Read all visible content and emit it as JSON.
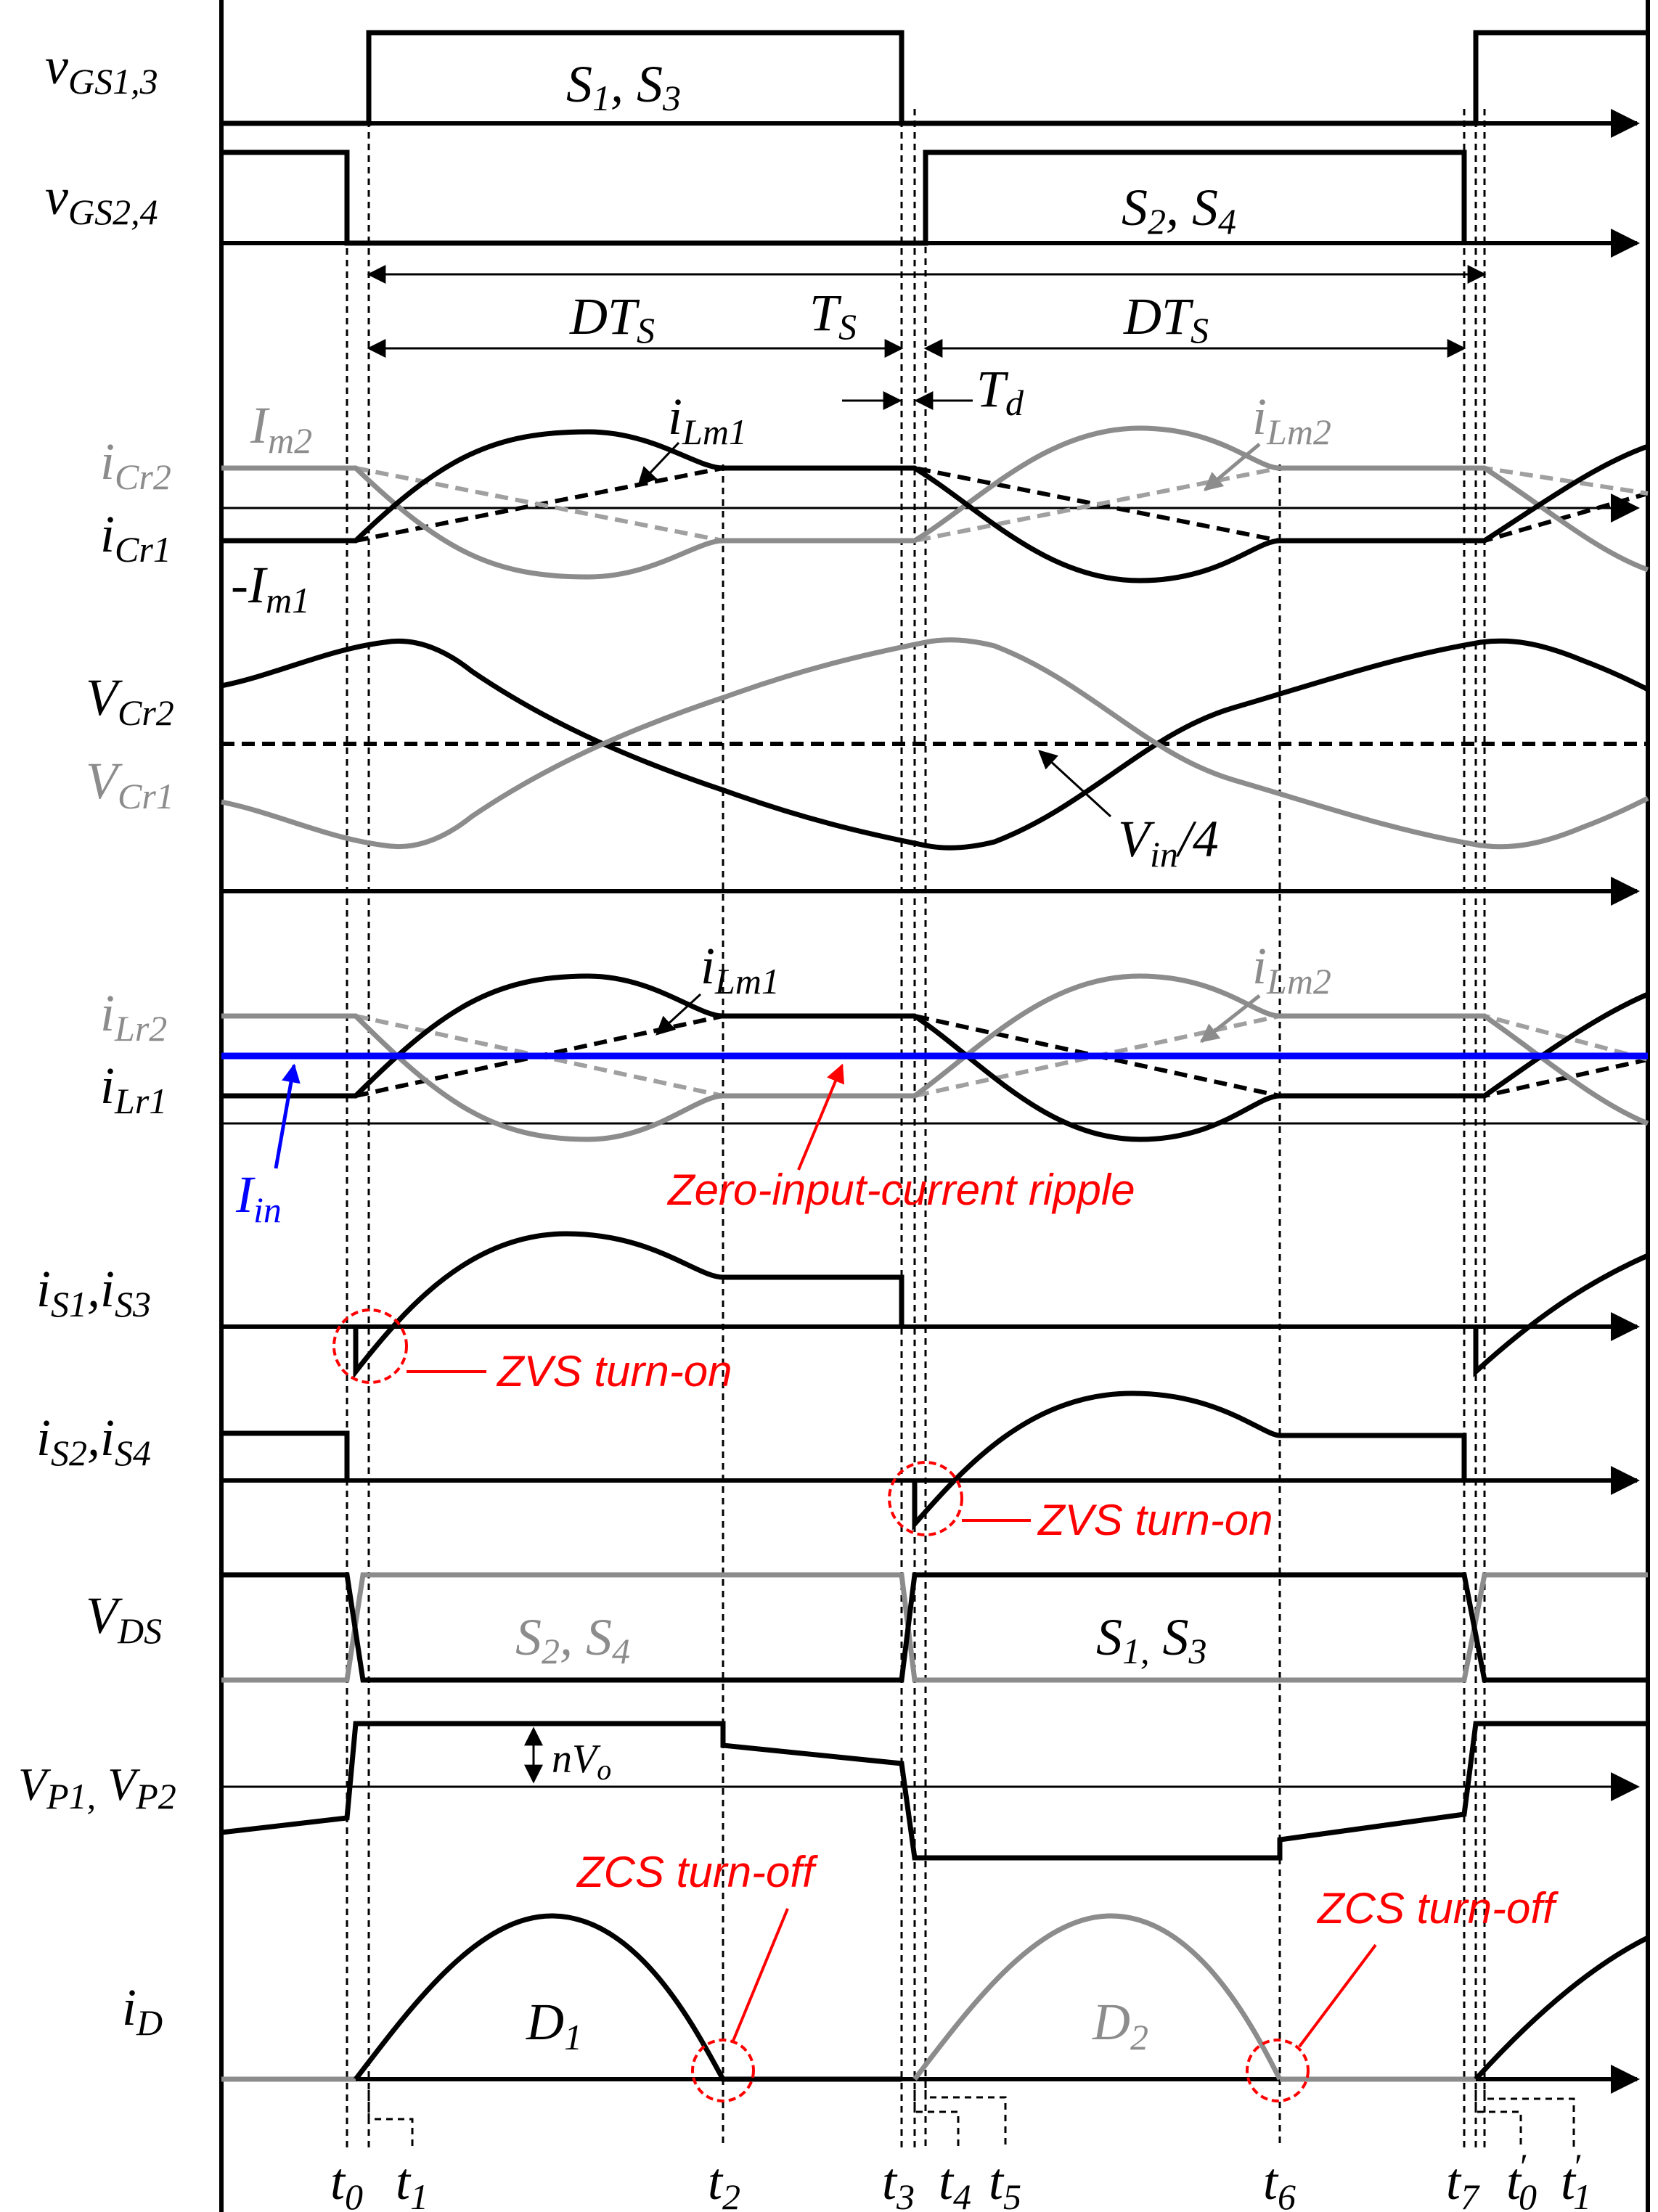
{
  "signals": {
    "vgs13": {
      "main": "v",
      "sub": "GS1,3"
    },
    "vgs24": {
      "main": "v",
      "sub": "GS2,4"
    },
    "icr2": {
      "main": "i",
      "sub": "Cr2"
    },
    "icr1": {
      "main": "i",
      "sub": "Cr1"
    },
    "vcr2": {
      "main": "V",
      "sub": "Cr2"
    },
    "vcr1": {
      "main": "V",
      "sub": "Cr1"
    },
    "ilr2": {
      "main": "i",
      "sub": "Lr2"
    },
    "ilr1": {
      "main": "i",
      "sub": "Lr1"
    },
    "is13": {
      "a": "i",
      "asub": "S1",
      "sep": ",",
      "b": "i",
      "bsub": "S3"
    },
    "is24": {
      "a": "i",
      "asub": "S2",
      "sep": ",",
      "b": "i",
      "bsub": "S4"
    },
    "vds": {
      "main": "V",
      "sub": "DS"
    },
    "vp": {
      "a": "V",
      "asub": "P1,",
      "b": " V",
      "bsub": "P2"
    },
    "id": {
      "main": "i",
      "sub": "D"
    }
  },
  "pulses": {
    "s13": {
      "a": "S",
      "asub": "1",
      "sep": ", ",
      "b": "S",
      "bsub": "3"
    },
    "s24": {
      "a": "S",
      "asub": "2",
      "sep": ", ",
      "b": "S",
      "bsub": "4"
    }
  },
  "timing": {
    "dts_main": "DT",
    "dts_sub": "S",
    "ts_main": "T",
    "ts_sub": "S",
    "td_main": "T",
    "td_sub": "d"
  },
  "current_labels": {
    "im2_main": "I",
    "im2_sub": "m2",
    "im1_main": "-I",
    "im1_sub": "m1",
    "ilm1_main": "i",
    "ilm1_sub": "Lm1",
    "ilm2_main": "i",
    "ilm2_sub": "Lm2",
    "vin4_main": "V",
    "vin4_sub": "in",
    "vin4_tail": "/4",
    "iin_main": "I",
    "iin_sub": "in"
  },
  "vds_regions": {
    "left": {
      "a": "S",
      "asub": "2",
      "sep": ", ",
      "b": "S",
      "bsub": "4"
    },
    "right": {
      "a": "S",
      "asub": "1,",
      "sep": " ",
      "b": "S",
      "bsub": "3"
    }
  },
  "vp_annotation": {
    "main": "nV",
    "sub": "o"
  },
  "diodes": {
    "d1": {
      "main": "D",
      "sub": "1"
    },
    "d2": {
      "main": "D",
      "sub": "2"
    }
  },
  "annotations": {
    "zero_ripple": "Zero-input-current ripple",
    "zvs1": "ZVS turn-on",
    "zvs2": "ZVS turn-on",
    "zcs1": "ZCS turn-off",
    "zcs2": "ZCS turn-off"
  },
  "time_markers": [
    {
      "main": "t",
      "sub": "0"
    },
    {
      "main": "t",
      "sub": "1"
    },
    {
      "main": "t",
      "sub": "2"
    },
    {
      "main": "t",
      "sub": "3"
    },
    {
      "main": "t",
      "sub": "4"
    },
    {
      "main": "t",
      "sub": "5"
    },
    {
      "main": "t",
      "sub": "6"
    },
    {
      "main": "t",
      "sub": "7"
    },
    {
      "main": "t",
      "sub": "0",
      "prime": "′"
    },
    {
      "main": "t",
      "sub": "1",
      "prime": "′"
    }
  ],
  "colors": {
    "primary": "#000000",
    "secondary": "#8c8c8c",
    "input_current": "#0000ff",
    "annotation": "#ff0000"
  }
}
